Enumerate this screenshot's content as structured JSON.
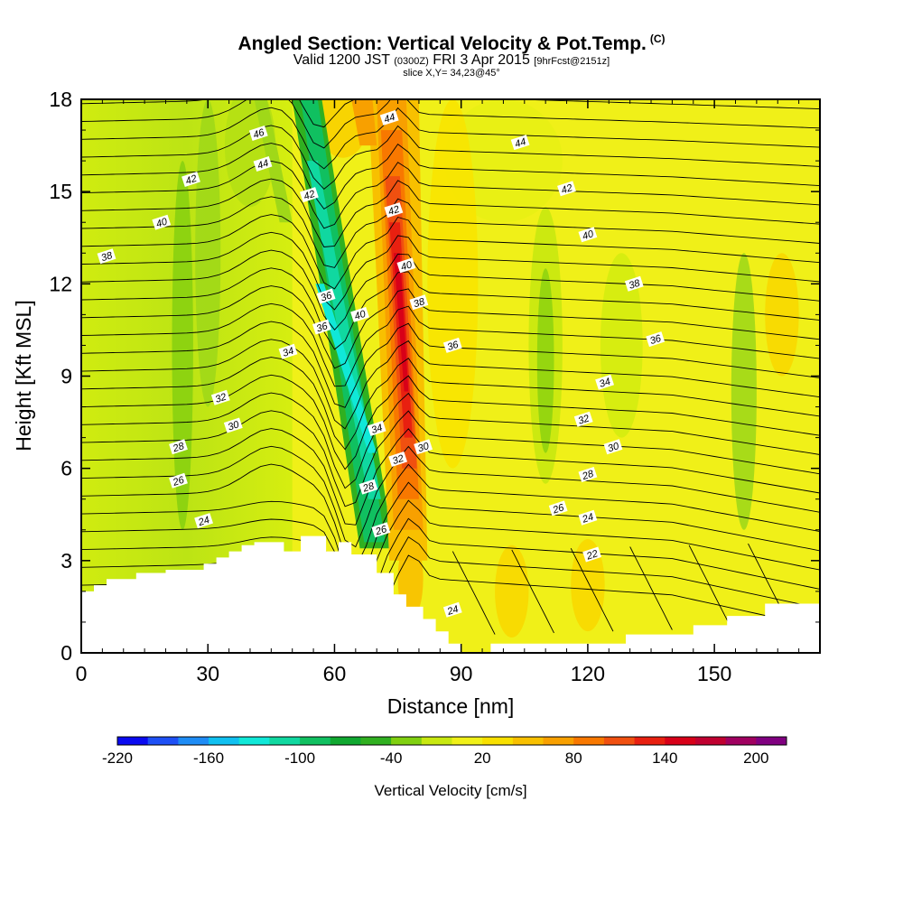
{
  "header": {
    "title": "Angled Section: Vertical Velocity & Pot.Temp.",
    "title_suffix": "(C)",
    "valid_prefix": "Valid 1200 JST",
    "valid_utc": "(0300Z)",
    "valid_date": "FRI 3 Apr 2015",
    "forecast": "[9hrFcst@2151z]",
    "slice": "slice X,Y= 34,23@45°"
  },
  "chart_data": {
    "type": "heatmap",
    "title": "Angled Section: Vertical Velocity & Pot.Temp.",
    "xlabel": "Distance [nm]",
    "ylabel": "Height [Kft MSL]",
    "xlim": [
      0,
      175
    ],
    "ylim": [
      0,
      18
    ],
    "x_ticks": [
      0,
      30,
      60,
      90,
      120,
      150
    ],
    "y_ticks": [
      0,
      3,
      6,
      9,
      12,
      15,
      18
    ],
    "colorbar": {
      "label": "Vertical Velocity [cm/s]",
      "range": [
        -220,
        220
      ],
      "step": 20,
      "tick_labels": [
        -220,
        -160,
        -100,
        -40,
        20,
        80,
        140,
        200
      ],
      "colors": [
        "#0a0af0",
        "#1e50f5",
        "#1e8cf5",
        "#10c0f0",
        "#10e8d8",
        "#10d8a0",
        "#10c060",
        "#10a830",
        "#30b020",
        "#80d010",
        "#c8e810",
        "#f0f018",
        "#f8e000",
        "#f8c000",
        "#f8a000",
        "#f87800",
        "#f05010",
        "#e82010",
        "#d80018",
        "#c00030",
        "#a00060",
        "#800080"
      ]
    },
    "background_field": [
      {
        "x_range": [
          0,
          50
        ],
        "vv_range": [
          -20,
          20
        ],
        "description_color": "#c8e810"
      },
      {
        "x_range": [
          87,
          175
        ],
        "vv_range": [
          0,
          20
        ],
        "description_color": "#f0f018"
      }
    ],
    "updraft_core": {
      "x_range": [
        71,
        81
      ],
      "height_range": [
        4,
        18
      ],
      "max_vv": 140
    },
    "downdraft_core": {
      "x_range": [
        52,
        72
      ],
      "height_range": [
        3,
        18
      ],
      "min_vv": -100
    },
    "theta_contour_labels": [
      {
        "value": 46,
        "x": 42,
        "y": 16.9
      },
      {
        "value": 44,
        "x": 43,
        "y": 15.9
      },
      {
        "value": 42,
        "x": 26,
        "y": 15.4
      },
      {
        "value": 42,
        "x": 54,
        "y": 14.9
      },
      {
        "value": 40,
        "x": 19,
        "y": 14.0
      },
      {
        "value": 38,
        "x": 6,
        "y": 12.9
      },
      {
        "value": 36,
        "x": 58,
        "y": 11.6
      },
      {
        "value": 36,
        "x": 57,
        "y": 10.6
      },
      {
        "value": 34,
        "x": 49,
        "y": 9.8
      },
      {
        "value": 32,
        "x": 33,
        "y": 8.3
      },
      {
        "value": 30,
        "x": 36,
        "y": 7.4
      },
      {
        "value": 28,
        "x": 23,
        "y": 6.7
      },
      {
        "value": 26,
        "x": 23,
        "y": 5.6
      },
      {
        "value": 24,
        "x": 29,
        "y": 4.3
      },
      {
        "value": 44,
        "x": 73,
        "y": 17.4
      },
      {
        "value": 42,
        "x": 74,
        "y": 14.4
      },
      {
        "value": 40,
        "x": 77,
        "y": 12.6
      },
      {
        "value": 40,
        "x": 66,
        "y": 11.0
      },
      {
        "value": 38,
        "x": 80,
        "y": 11.4
      },
      {
        "value": 36,
        "x": 88,
        "y": 10.0
      },
      {
        "value": 34,
        "x": 70,
        "y": 7.3
      },
      {
        "value": 32,
        "x": 75,
        "y": 6.3
      },
      {
        "value": 30,
        "x": 81,
        "y": 6.7
      },
      {
        "value": 28,
        "x": 68,
        "y": 5.4
      },
      {
        "value": 26,
        "x": 71,
        "y": 4.0
      },
      {
        "value": 24,
        "x": 88,
        "y": 1.4
      },
      {
        "value": 44,
        "x": 104,
        "y": 16.6
      },
      {
        "value": 42,
        "x": 115,
        "y": 15.1
      },
      {
        "value": 40,
        "x": 120,
        "y": 13.6
      },
      {
        "value": 38,
        "x": 131,
        "y": 12.0
      },
      {
        "value": 36,
        "x": 136,
        "y": 10.2
      },
      {
        "value": 34,
        "x": 124,
        "y": 8.8
      },
      {
        "value": 32,
        "x": 119,
        "y": 7.6
      },
      {
        "value": 30,
        "x": 126,
        "y": 6.7
      },
      {
        "value": 28,
        "x": 120,
        "y": 5.8
      },
      {
        "value": 26,
        "x": 113,
        "y": 4.7
      },
      {
        "value": 24,
        "x": 120,
        "y": 4.4
      },
      {
        "value": 22,
        "x": 121,
        "y": 3.2
      }
    ],
    "terrain": [
      [
        0,
        2
      ],
      [
        3,
        2
      ],
      [
        3,
        2.2
      ],
      [
        6,
        2.2
      ],
      [
        6,
        2.4
      ],
      [
        13,
        2.4
      ],
      [
        13,
        2.6
      ],
      [
        20,
        2.6
      ],
      [
        20,
        2.7
      ],
      [
        29,
        2.7
      ],
      [
        29,
        2.9
      ],
      [
        32,
        2.9
      ],
      [
        32,
        3.1
      ],
      [
        35,
        3.1
      ],
      [
        35,
        3.3
      ],
      [
        38,
        3.3
      ],
      [
        38,
        3.5
      ],
      [
        41,
        3.5
      ],
      [
        41,
        3.6
      ],
      [
        48,
        3.6
      ],
      [
        48,
        3.3
      ],
      [
        52,
        3.3
      ],
      [
        52,
        3.8
      ],
      [
        58,
        3.8
      ],
      [
        58,
        3.3
      ],
      [
        61,
        3.3
      ],
      [
        61,
        3.6
      ],
      [
        64,
        3.6
      ],
      [
        64,
        3.2
      ],
      [
        70,
        3.2
      ],
      [
        70,
        2.6
      ],
      [
        74,
        2.6
      ],
      [
        74,
        1.9
      ],
      [
        77,
        1.9
      ],
      [
        77,
        1.5
      ],
      [
        81,
        1.5
      ],
      [
        81,
        1.1
      ],
      [
        84,
        1.1
      ],
      [
        84,
        0.7
      ],
      [
        87,
        0.7
      ],
      [
        87,
        0.3
      ],
      [
        90,
        0.3
      ],
      [
        90,
        0
      ],
      [
        97,
        0
      ],
      [
        97,
        0.3
      ],
      [
        129,
        0.3
      ],
      [
        129,
        0.6
      ],
      [
        145,
        0.6
      ],
      [
        145,
        0.9
      ],
      [
        153,
        0.9
      ],
      [
        153,
        1.2
      ],
      [
        162,
        1.2
      ],
      [
        162,
        1.6
      ],
      [
        175,
        1.6
      ]
    ]
  }
}
